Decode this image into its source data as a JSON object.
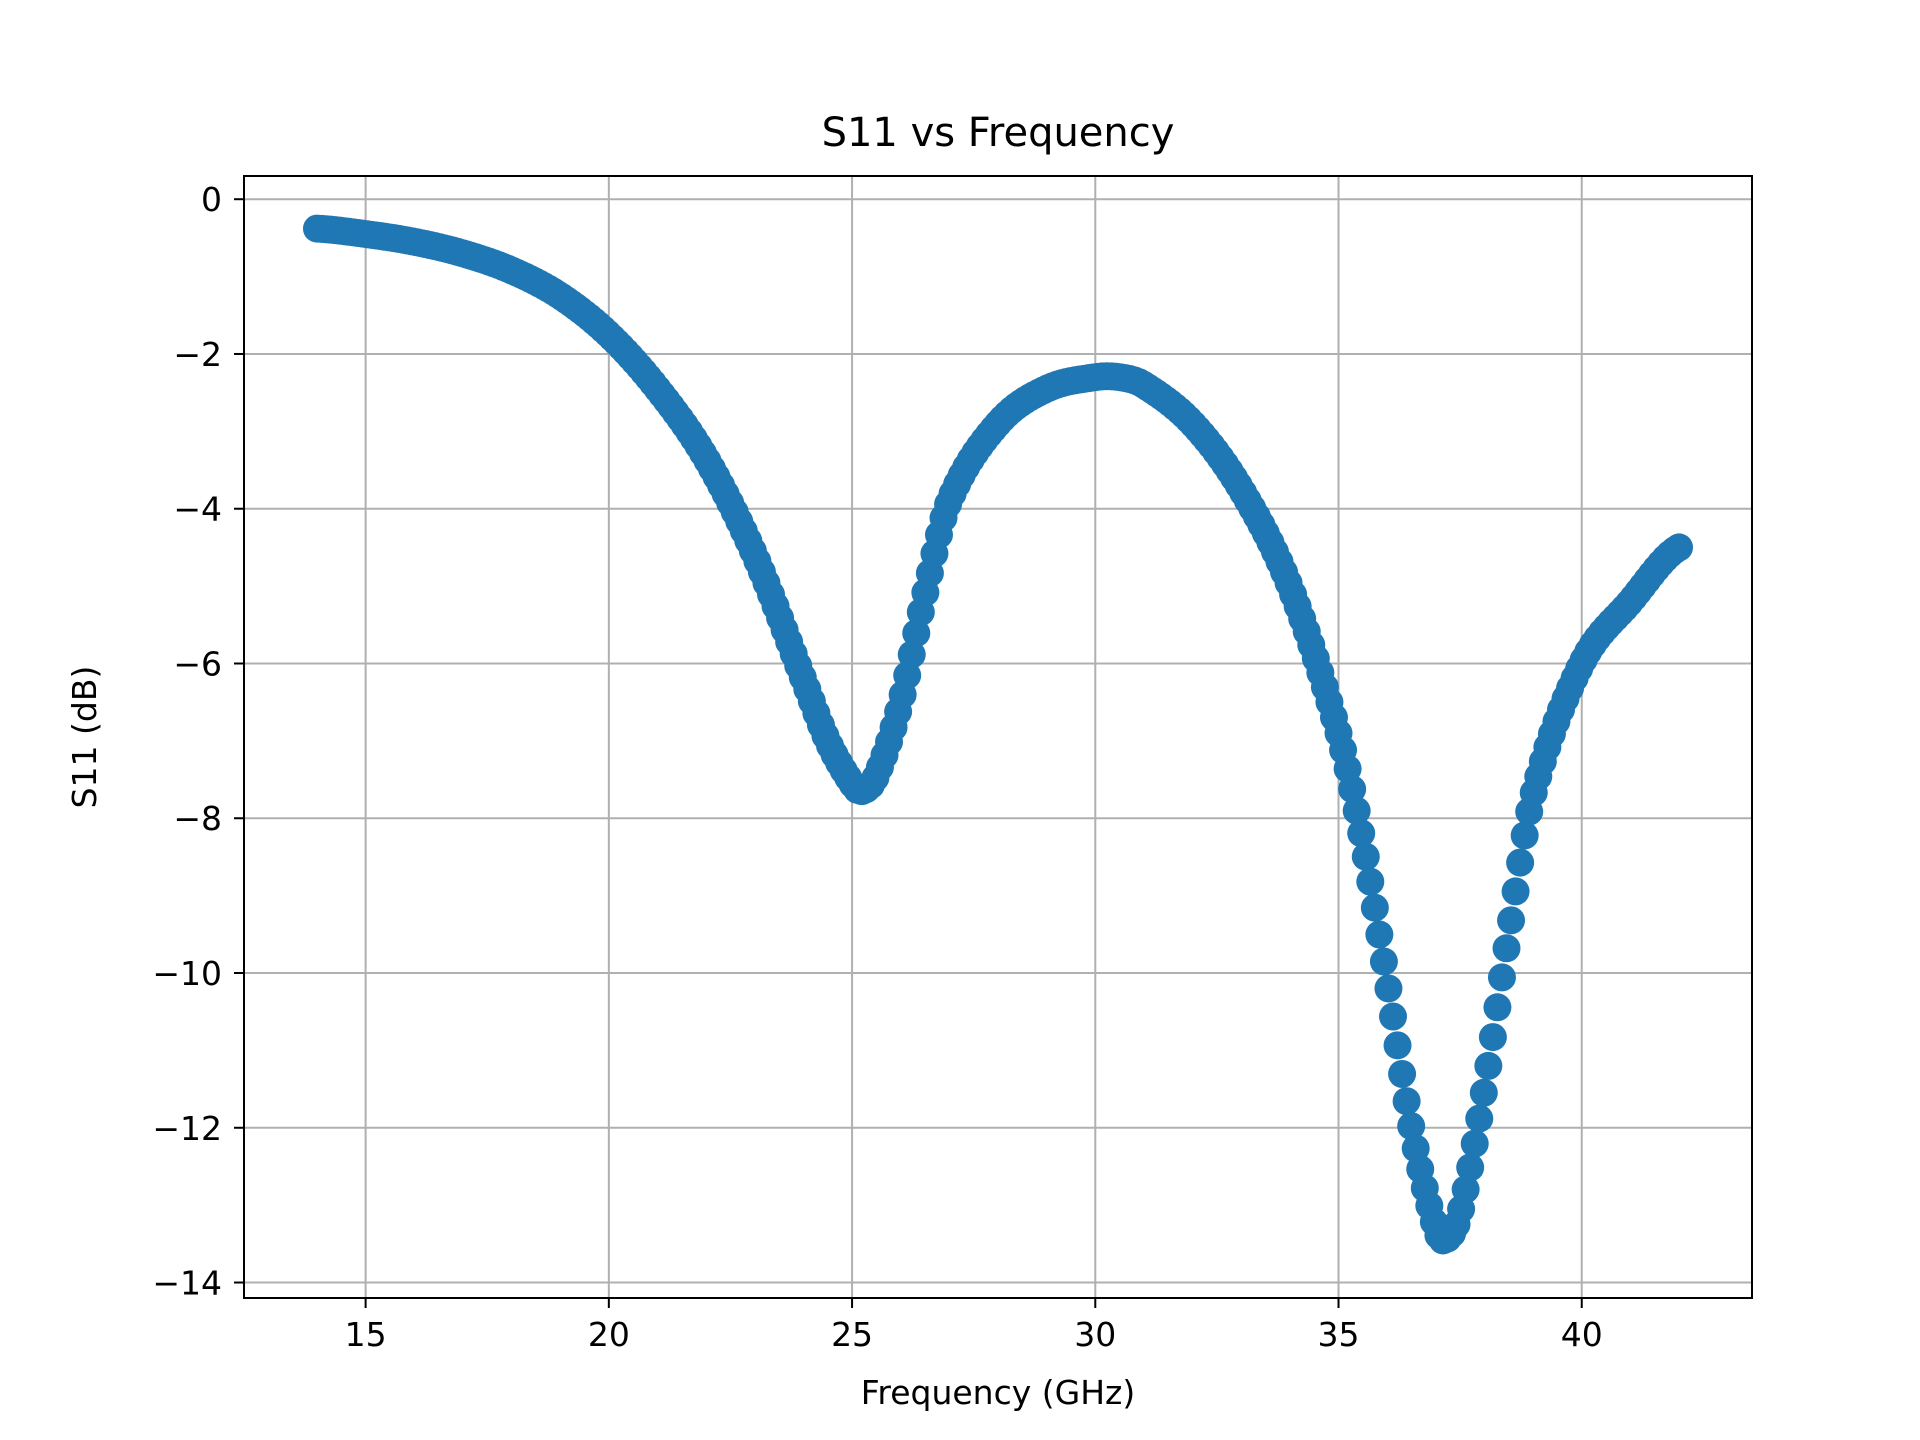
{
  "chart_data": {
    "type": "scatter",
    "title": "S11 vs Frequency",
    "xlabel": "Frequency (GHz)",
    "ylabel": "S11 (dB)",
    "xlim": [
      12.5,
      43.5
    ],
    "ylim": [
      -14.2,
      0.3
    ],
    "x_ticks": [
      15,
      20,
      25,
      30,
      35,
      40
    ],
    "y_ticks": [
      0,
      -2,
      -4,
      -6,
      -8,
      -10,
      -12,
      -14
    ],
    "x_tick_labels": [
      "15",
      "20",
      "25",
      "30",
      "35",
      "40"
    ],
    "y_tick_labels": [
      "0",
      "−2",
      "−4",
      "−6",
      "−8",
      "−10",
      "−12",
      "−14"
    ],
    "grid": true,
    "marker_color": "#1f77b4",
    "series": [
      {
        "x": [
          14.0,
          15.0,
          16.0,
          17.0,
          18.0,
          19.0,
          20.0,
          21.0,
          22.0,
          23.0,
          24.0,
          24.5,
          25.0,
          25.2,
          25.5,
          26.0,
          26.5,
          27.0,
          28.0,
          29.0,
          30.0,
          30.5,
          31.0,
          32.0,
          33.0,
          34.0,
          35.0,
          35.5,
          36.0,
          36.5,
          37.0,
          37.2,
          37.5,
          38.0,
          38.5,
          39.0,
          40.0,
          41.0,
          42.0
        ],
        "y": [
          -0.38,
          -0.45,
          -0.55,
          -0.7,
          -0.92,
          -1.25,
          -1.75,
          -2.45,
          -3.35,
          -4.6,
          -6.2,
          -7.0,
          -7.55,
          -7.65,
          -7.45,
          -6.5,
          -5.1,
          -3.9,
          -2.9,
          -2.45,
          -2.3,
          -2.3,
          -2.4,
          -2.9,
          -3.75,
          -5.0,
          -6.9,
          -8.3,
          -10.1,
          -12.0,
          -13.3,
          -13.45,
          -13.1,
          -11.5,
          -9.5,
          -7.7,
          -6.0,
          -5.2,
          -4.5
        ]
      }
    ]
  }
}
